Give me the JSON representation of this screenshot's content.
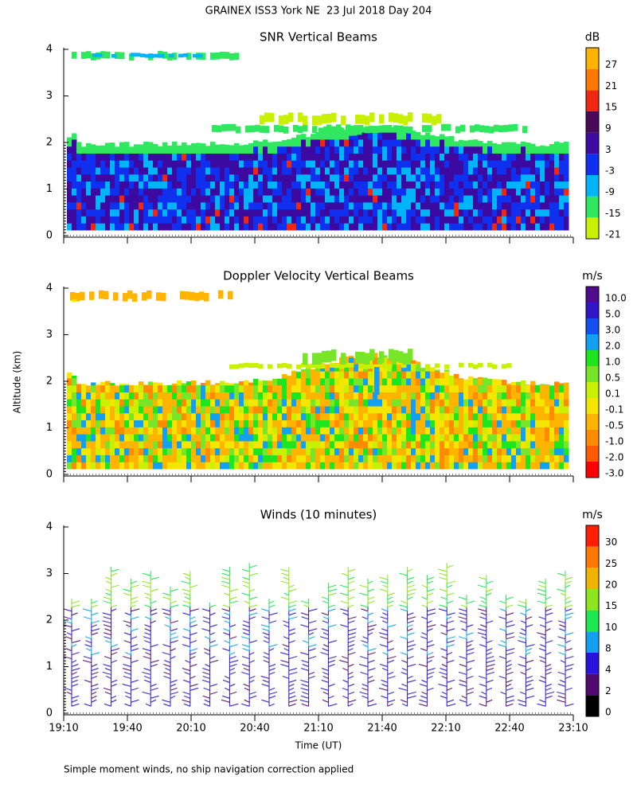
{
  "title": "GRAINEX ISS3 York NE  23 Jul 2018 Day 204",
  "footnote": "Simple moment winds, no ship navigation correction applied",
  "chart_data": [
    {
      "type": "contour",
      "title": "SNR Vertical Beams",
      "ylim": [
        0,
        4
      ],
      "yticks": [
        0,
        1,
        2,
        3,
        4
      ],
      "colorbar": {
        "label": "dB",
        "levels": [
          -21,
          -15,
          -9,
          -3,
          3,
          9,
          15,
          21,
          27
        ],
        "colors": [
          "#c8f000",
          "#30e860",
          "#00b4f8",
          "#1030f0",
          "#3c0aa0",
          "#4a0a5a",
          "#f02810",
          "#ff7800",
          "#ffb400"
        ]
      }
    },
    {
      "type": "contour",
      "title": "Doppler Velocity Vertical Beams",
      "y_label": "Altitude (km)",
      "ylim": [
        0,
        4
      ],
      "yticks": [
        0,
        1,
        2,
        3,
        4
      ],
      "colorbar": {
        "label": "m/s",
        "levels": [
          {
            "value": -3.0,
            "label": "-3.0"
          },
          {
            "value": -2.0,
            "label": "-2.0"
          },
          {
            "value": -1.0,
            "label": "-1.0"
          },
          -0.5,
          -0.1,
          0.1,
          0.5,
          {
            "value": 1.0,
            "label": "1.0"
          },
          {
            "value": 2.0,
            "label": "2.0"
          },
          {
            "value": 3.0,
            "label": "3.0"
          },
          {
            "value": 5.0,
            "label": "5.0"
          },
          {
            "value": 10.0,
            "label": "10.0"
          }
        ],
        "colors": [
          "#ff0000",
          "#ff5a00",
          "#ff8c00",
          "#ffb400",
          "#f5e600",
          "#c8f000",
          "#78e628",
          "#1ee61e",
          "#14a0f0",
          "#1450f0",
          "#3214c8",
          "#500a8c"
        ]
      }
    },
    {
      "type": "barbs",
      "title": "Winds (10 minutes)",
      "x_label": "Time (UT)",
      "ylim": [
        0,
        4
      ],
      "yticks": [
        0,
        1,
        2,
        3,
        4
      ],
      "xticks": [
        "19:10",
        "19:40",
        "20:10",
        "20:40",
        "21:10",
        "21:40",
        "22:10",
        "22:40",
        "23:10"
      ],
      "colorbar": {
        "label": "m/s",
        "levels": [
          0,
          2,
          4,
          8,
          10,
          15,
          20,
          25,
          30
        ],
        "colors": [
          "#000000",
          "#500a6e",
          "#2814dc",
          "#14a0f0",
          "#1ee650",
          "#8ce61e",
          "#f0b400",
          "#ff7800",
          "#ff1e00"
        ]
      }
    }
  ]
}
